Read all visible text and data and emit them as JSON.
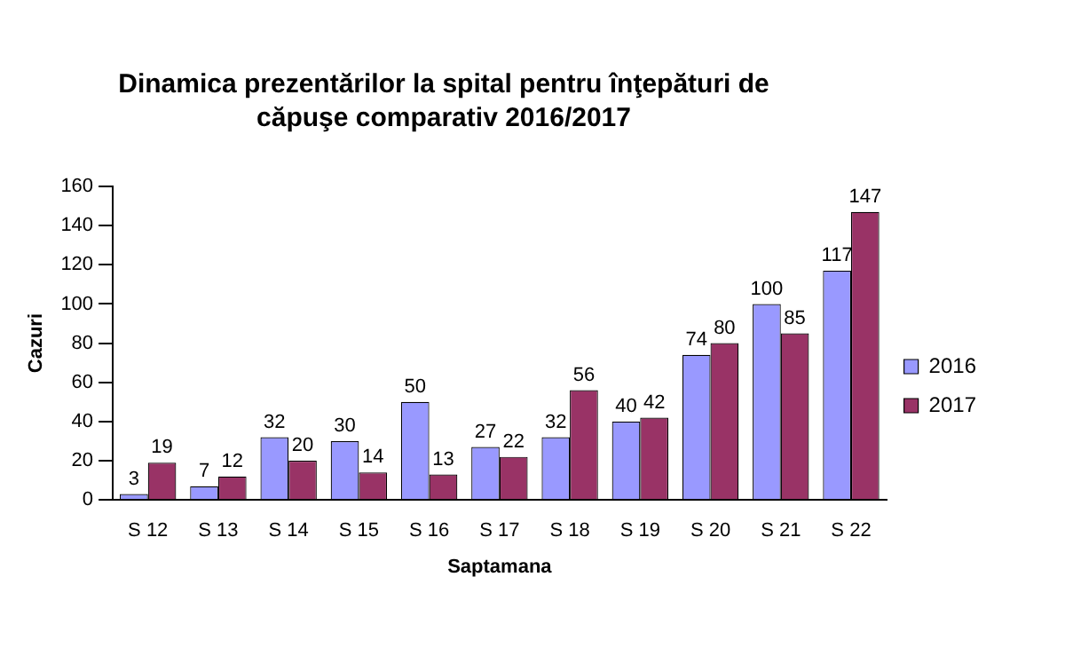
{
  "chart_data": {
    "type": "bar",
    "title": "Dinamica prezentărilor la spital pentru înţepături de căpuşe comparativ 2016/2017",
    "xlabel": "Saptamana",
    "ylabel": "Cazuri",
    "categories": [
      "S 12",
      "S 13",
      "S 14",
      "S 15",
      "S 16",
      "S 17",
      "S 18",
      "S 19",
      "S 20",
      "S 21",
      "S 22"
    ],
    "series": [
      {
        "name": "2016",
        "color": "#9999ff",
        "values": [
          3,
          7,
          32,
          30,
          50,
          27,
          32,
          40,
          74,
          100,
          117
        ]
      },
      {
        "name": "2017",
        "color": "#993366",
        "values": [
          19,
          12,
          20,
          14,
          13,
          22,
          56,
          42,
          80,
          85,
          147
        ]
      }
    ],
    "ylim": [
      0,
      160
    ],
    "yticks": [
      0,
      20,
      40,
      60,
      80,
      100,
      120,
      140,
      160
    ],
    "grid": false,
    "legend": "right",
    "data_labels": true
  }
}
